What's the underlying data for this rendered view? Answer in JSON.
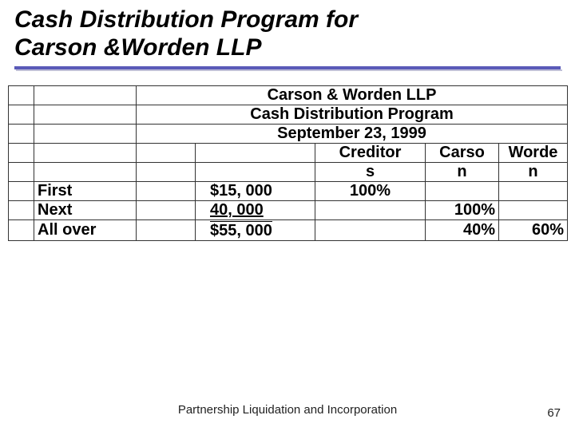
{
  "title_line1": "Cash Distribution Program for",
  "title_line2": "Carson &Worden LLP",
  "header": {
    "company": "Carson & Worden LLP",
    "program": "Cash Distribution Program",
    "date": "September 23, 1999"
  },
  "columns": {
    "creditors_l1": "Creditor",
    "creditors_l2": "s",
    "carson_l1": "Carso",
    "carson_l2": "n",
    "worden_l1": "Worde",
    "worden_l2": "n"
  },
  "rows": {
    "first": {
      "label": "First",
      "amount": "$15, 000",
      "creditors": "100%",
      "carson": "",
      "worden": ""
    },
    "next": {
      "label": "Next",
      "amount": "40, 000",
      "creditors": "",
      "carson": "100%",
      "worden": ""
    },
    "allover": {
      "label": "All over",
      "amount": "$55, 000",
      "creditors": "",
      "carson": "40%",
      "worden": "60%"
    }
  },
  "footer": "Partnership Liquidation and Incorporation",
  "pagenum": "67",
  "colors": {
    "underline": "#5a5ab8",
    "shadow": "#c0c0d8",
    "text": "#000000",
    "bg": "#ffffff"
  }
}
